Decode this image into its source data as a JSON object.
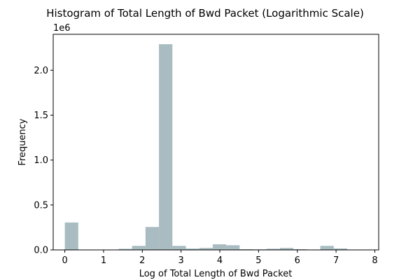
{
  "chart_data": {
    "type": "bar",
    "title": "Histogram of Total Length of Bwd Packet (Logarithmic Scale)",
    "xlabel": "Log of Total Length of Bwd Packet",
    "ylabel": "Frequency",
    "y_offset_text": "1e6",
    "xlim": [
      -0.3,
      8.1
    ],
    "ylim": [
      0,
      2.4
    ],
    "x_ticks": [
      0,
      1,
      2,
      3,
      4,
      5,
      6,
      7,
      8
    ],
    "y_ticks": [
      0.0,
      0.5,
      1.0,
      1.5,
      2.0
    ],
    "y_tick_labels": [
      "0.0",
      "0.5",
      "1.0",
      "1.5",
      "2.0"
    ],
    "bar_color": "#a9bcc1",
    "grid": false,
    "bins": [
      {
        "x0": 0.0,
        "x1": 0.347,
        "value": 0.305
      },
      {
        "x0": 0.347,
        "x1": 0.694,
        "value": 0.0
      },
      {
        "x0": 0.694,
        "x1": 1.041,
        "value": 0.0
      },
      {
        "x0": 1.041,
        "x1": 1.388,
        "value": 0.0
      },
      {
        "x0": 1.388,
        "x1": 1.735,
        "value": 0.012
      },
      {
        "x0": 1.735,
        "x1": 2.082,
        "value": 0.045
      },
      {
        "x0": 2.082,
        "x1": 2.429,
        "value": 0.255
      },
      {
        "x0": 2.429,
        "x1": 2.776,
        "value": 2.29
      },
      {
        "x0": 2.776,
        "x1": 3.123,
        "value": 0.045
      },
      {
        "x0": 3.123,
        "x1": 3.47,
        "value": 0.015
      },
      {
        "x0": 3.47,
        "x1": 3.817,
        "value": 0.022
      },
      {
        "x0": 3.817,
        "x1": 4.164,
        "value": 0.062
      },
      {
        "x0": 4.164,
        "x1": 4.511,
        "value": 0.052
      },
      {
        "x0": 4.511,
        "x1": 4.858,
        "value": 0.008
      },
      {
        "x0": 4.858,
        "x1": 5.205,
        "value": 0.006
      },
      {
        "x0": 5.205,
        "x1": 5.552,
        "value": 0.013
      },
      {
        "x0": 5.552,
        "x1": 5.899,
        "value": 0.022
      },
      {
        "x0": 5.899,
        "x1": 6.246,
        "value": 0.008
      },
      {
        "x0": 6.246,
        "x1": 6.593,
        "value": 0.002
      },
      {
        "x0": 6.593,
        "x1": 6.94,
        "value": 0.045
      },
      {
        "x0": 6.94,
        "x1": 7.287,
        "value": 0.016
      },
      {
        "x0": 7.287,
        "x1": 7.634,
        "value": 0.001
      }
    ]
  }
}
